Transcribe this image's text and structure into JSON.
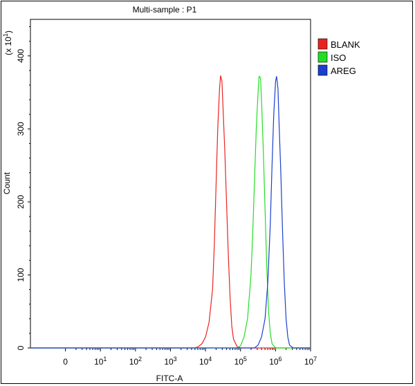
{
  "chart_data": {
    "type": "line",
    "title": "Multi-sample : P1",
    "xlabel": "FITC-A",
    "ylabel": "Count",
    "y_multiplier_label": "(x 10",
    "y_multiplier_exp": "1",
    "y_multiplier_close": ")",
    "x_scale": "log",
    "xlim": [
      -1,
      7
    ],
    "ylim": [
      0,
      45
    ],
    "grid": false,
    "legend_position": "top-right",
    "x_ticks": [
      {
        "base": "0",
        "exp": "",
        "value": 0
      },
      {
        "base": "10",
        "exp": "1",
        "value": 1
      },
      {
        "base": "10",
        "exp": "2",
        "value": 2
      },
      {
        "base": "10",
        "exp": "3",
        "value": 3
      },
      {
        "base": "10",
        "exp": "4",
        "value": 4
      },
      {
        "base": "10",
        "exp": "5",
        "value": 5
      },
      {
        "base": "10",
        "exp": "6",
        "value": 6
      },
      {
        "base": "10",
        "exp": "7",
        "value": 7
      }
    ],
    "y_ticks": [
      {
        "label": "0",
        "value": 0
      },
      {
        "label": "100",
        "value": 10
      },
      {
        "label": "200",
        "value": 20
      },
      {
        "label": "300",
        "value": 30
      },
      {
        "label": "400",
        "value": 40
      }
    ],
    "series": [
      {
        "name": "BLANK",
        "color": "#e8231f",
        "points": [
          [
            -1,
            0
          ],
          [
            3.7,
            0
          ],
          [
            3.8,
            0.2
          ],
          [
            3.9,
            0.6
          ],
          [
            4.0,
            1.5
          ],
          [
            4.1,
            3.5
          ],
          [
            4.2,
            8
          ],
          [
            4.25,
            14
          ],
          [
            4.3,
            22
          ],
          [
            4.35,
            30
          ],
          [
            4.4,
            35.5
          ],
          [
            4.43,
            37.3
          ],
          [
            4.47,
            36.5
          ],
          [
            4.5,
            33
          ],
          [
            4.55,
            27
          ],
          [
            4.6,
            20
          ],
          [
            4.65,
            13
          ],
          [
            4.7,
            7
          ],
          [
            4.75,
            3
          ],
          [
            4.8,
            1.2
          ],
          [
            4.9,
            0.2
          ],
          [
            5.0,
            0
          ],
          [
            7,
            0
          ]
        ]
      },
      {
        "name": "ISO",
        "color": "#22dd22",
        "points": [
          [
            -1,
            0
          ],
          [
            4.9,
            0
          ],
          [
            5.0,
            0.3
          ],
          [
            5.1,
            1.5
          ],
          [
            5.2,
            4
          ],
          [
            5.3,
            10
          ],
          [
            5.35,
            16
          ],
          [
            5.4,
            23
          ],
          [
            5.45,
            30
          ],
          [
            5.5,
            35
          ],
          [
            5.53,
            37.2
          ],
          [
            5.57,
            37
          ],
          [
            5.6,
            34
          ],
          [
            5.65,
            27
          ],
          [
            5.7,
            19
          ],
          [
            5.75,
            11
          ],
          [
            5.8,
            5
          ],
          [
            5.85,
            2
          ],
          [
            5.9,
            0.6
          ],
          [
            6.0,
            0
          ],
          [
            7,
            0
          ]
        ]
      },
      {
        "name": "AREG",
        "color": "#1a3fcf",
        "points": [
          [
            -1,
            0
          ],
          [
            5.4,
            0
          ],
          [
            5.5,
            0.4
          ],
          [
            5.6,
            1.5
          ],
          [
            5.7,
            4
          ],
          [
            5.78,
            9
          ],
          [
            5.85,
            17
          ],
          [
            5.9,
            25
          ],
          [
            5.95,
            32
          ],
          [
            6.0,
            36.5
          ],
          [
            6.03,
            37.2
          ],
          [
            6.07,
            35.5
          ],
          [
            6.1,
            31
          ],
          [
            6.15,
            24
          ],
          [
            6.2,
            16
          ],
          [
            6.25,
            9
          ],
          [
            6.3,
            4
          ],
          [
            6.35,
            1.5
          ],
          [
            6.4,
            0.4
          ],
          [
            6.5,
            0
          ],
          [
            7,
            0
          ]
        ]
      }
    ]
  }
}
